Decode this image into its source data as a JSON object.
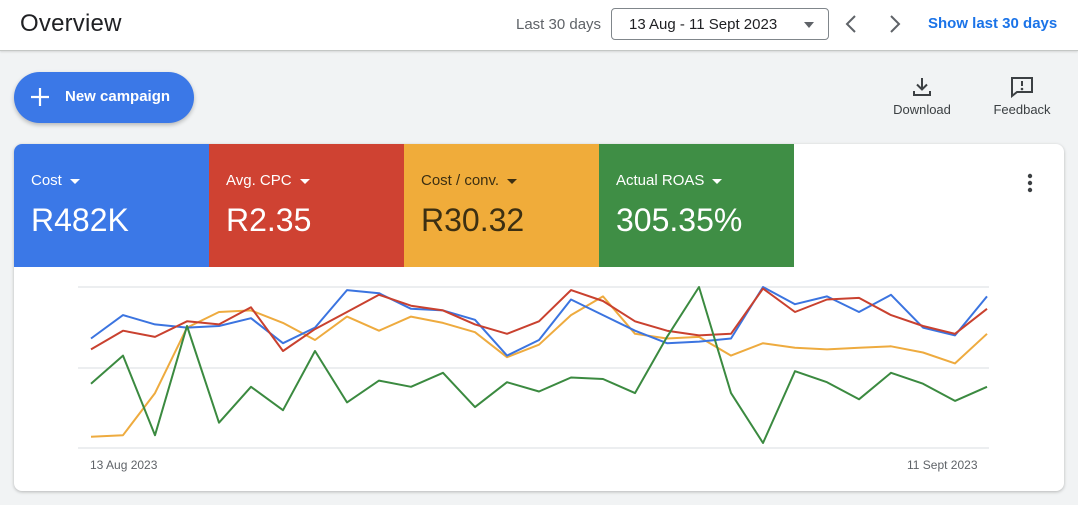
{
  "header": {
    "title": "Overview",
    "range_label": "Last 30 days",
    "date_range": "13 Aug - 11 Sept 2023",
    "show_link": "Show last 30 days"
  },
  "actions": {
    "new_campaign": "New campaign",
    "download": "Download",
    "feedback": "Feedback"
  },
  "metrics": [
    {
      "name": "Cost",
      "value": "R482K",
      "color": "#3b78e7"
    },
    {
      "name": "Avg. CPC",
      "value": "R2.35",
      "color": "#cf4232"
    },
    {
      "name": "Cost / conv.",
      "value": "R30.32",
      "color": "#f0ac3a"
    },
    {
      "name": "Actual ROAS",
      "value": "305.35%",
      "color": "#3f8e45"
    }
  ],
  "chart_data": {
    "type": "line",
    "x_labels": [
      "13 Aug 2023",
      "11 Sept 2023"
    ],
    "grid": true,
    "series": [
      {
        "metric": "Cost",
        "color": "#3b74e0",
        "values": [
          0.67,
          0.82,
          0.76,
          0.74,
          0.75,
          0.8,
          0.64,
          0.74,
          0.98,
          0.96,
          0.86,
          0.85,
          0.79,
          0.56,
          0.66,
          0.92,
          0.82,
          0.72,
          0.64,
          0.65,
          0.67,
          1.0,
          0.89,
          0.94,
          0.84,
          0.95,
          0.74,
          0.69,
          0.94
        ]
      },
      {
        "metric": "Avg. CPC",
        "color": "#c9412f",
        "values": [
          0.6,
          0.72,
          0.68,
          0.78,
          0.76,
          0.87,
          0.59,
          0.73,
          0.84,
          0.95,
          0.88,
          0.85,
          0.76,
          0.7,
          0.78,
          0.98,
          0.91,
          0.78,
          0.72,
          0.69,
          0.7,
          0.99,
          0.84,
          0.92,
          0.93,
          0.82,
          0.75,
          0.7,
          0.86
        ]
      },
      {
        "metric": "Cost / conv.",
        "color": "#eeab3f",
        "values": [
          0.04,
          0.05,
          0.32,
          0.74,
          0.84,
          0.85,
          0.77,
          0.66,
          0.81,
          0.72,
          0.81,
          0.77,
          0.71,
          0.55,
          0.63,
          0.82,
          0.94,
          0.7,
          0.67,
          0.68,
          0.56,
          0.64,
          0.61,
          0.6,
          0.61,
          0.62,
          0.58,
          0.51,
          0.7
        ]
      },
      {
        "metric": "Actual ROAS",
        "color": "#3b8a40",
        "values": [
          0.38,
          0.56,
          0.05,
          0.75,
          0.13,
          0.36,
          0.21,
          0.59,
          0.26,
          0.4,
          0.36,
          0.45,
          0.23,
          0.39,
          0.33,
          0.42,
          0.41,
          0.32,
          0.68,
          1.0,
          0.32,
          0.0,
          0.46,
          0.39,
          0.28,
          0.45,
          0.38,
          0.27,
          0.36
        ]
      }
    ]
  }
}
